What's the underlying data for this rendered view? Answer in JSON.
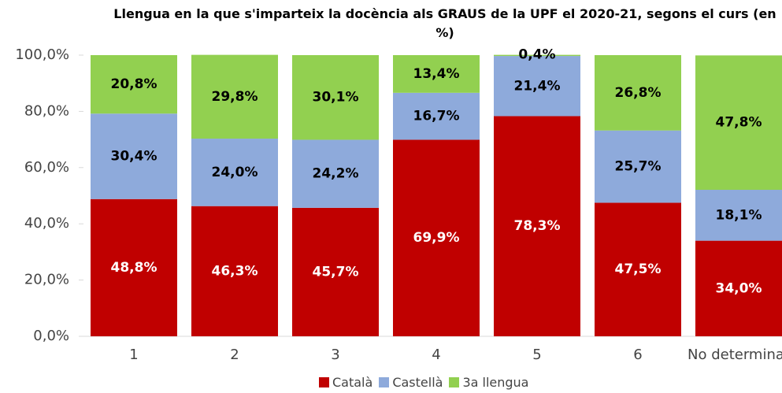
{
  "chart_data": {
    "type": "stacked_bar",
    "title": "Llengua en la que s'imparteix la docència als GRAUS de la UPF el 2020-21, segons el curs (en %)",
    "categories": [
      "1",
      "2",
      "3",
      "4",
      "5",
      "6",
      "No determinat"
    ],
    "series": [
      {
        "name": "Català",
        "color": "#c00000",
        "values": [
          48.8,
          46.3,
          45.7,
          69.9,
          78.3,
          47.5,
          34.0
        ],
        "value_labels": [
          "48,8%",
          "46,3%",
          "45,7%",
          "69,9%",
          "78,3%",
          "47,5%",
          "34,0%"
        ]
      },
      {
        "name": "Castellà",
        "color": "#8eaadb",
        "values": [
          30.4,
          24.0,
          24.2,
          16.7,
          21.4,
          25.7,
          18.1
        ],
        "value_labels": [
          "30,4%",
          "24,0%",
          "24,2%",
          "16,7%",
          "21,4%",
          "25,7%",
          "18,1%"
        ]
      },
      {
        "name": "3a llengua",
        "color": "#92d050",
        "values": [
          20.8,
          29.8,
          30.1,
          13.4,
          0.4,
          26.8,
          47.8
        ],
        "value_labels": [
          "20,8%",
          "29,8%",
          "30,1%",
          "13,4%",
          "0,4%",
          "26,8%",
          "47,8%"
        ]
      }
    ],
    "ylim": [
      0,
      100
    ],
    "yticks": [
      {
        "value": 0,
        "label": "0,0%"
      },
      {
        "value": 20,
        "label": "20,0%"
      },
      {
        "value": 40,
        "label": "40,0%"
      },
      {
        "value": 60,
        "label": "60,0%"
      },
      {
        "value": 80,
        "label": "80,0%"
      },
      {
        "value": 100,
        "label": "100,0%"
      }
    ],
    "legend": "bottom"
  }
}
